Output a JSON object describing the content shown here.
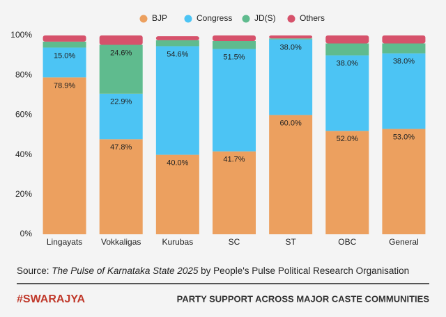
{
  "chart_data": {
    "type": "stacked-bar",
    "categories": [
      "Lingayats",
      "Vokkaligas",
      "Kurubas",
      "SC",
      "ST",
      "OBC",
      "General"
    ],
    "series": [
      {
        "name": "BJP",
        "color": "#eca05f",
        "values": [
          78.9,
          47.8,
          40.0,
          41.7,
          60.0,
          52.0,
          53.0
        ],
        "value_labels": [
          "78.9%",
          "47.8%",
          "40.0%",
          "41.7%",
          "60.0%",
          "52.0%",
          "53.0%"
        ]
      },
      {
        "name": "Congress",
        "color": "#4cc4f4",
        "values": [
          15.0,
          22.9,
          54.6,
          51.5,
          38.0,
          38.0,
          38.0
        ],
        "value_labels": [
          "15.0%",
          "22.9%",
          "54.6%",
          "51.5%",
          "38.0%",
          "38.0%",
          "38.0%"
        ]
      },
      {
        "name": "JD(S)",
        "color": "#5fbb8e",
        "values": [
          3.0,
          24.6,
          3.0,
          4.0,
          0.5,
          6.0,
          5.0
        ],
        "value_labels": [
          null,
          "24.6%",
          null,
          null,
          null,
          null,
          null
        ]
      },
      {
        "name": "Others",
        "color": "#d6526b",
        "values": [
          3.1,
          4.7,
          2.0,
          2.8,
          1.5,
          4.0,
          4.0
        ]
      }
    ],
    "ylim": [
      0,
      100
    ],
    "yticks": [
      {
        "value": 0,
        "label": "0%"
      },
      {
        "value": 20,
        "label": "20%"
      },
      {
        "value": 40,
        "label": "40%"
      },
      {
        "value": 60,
        "label": "60%"
      },
      {
        "value": 80,
        "label": "80%"
      },
      {
        "value": 100,
        "label": "100%"
      }
    ],
    "grid": false
  },
  "footer": {
    "source_prefix": "Source: ",
    "source_title": "The Pulse of Karnataka State 2025",
    "source_suffix": " by People's Pulse Political Research Organisation",
    "brand": "#SWARAJYA",
    "headline": "PARTY SUPPORT ACROSS MAJOR CASTE COMMUNITIES"
  }
}
